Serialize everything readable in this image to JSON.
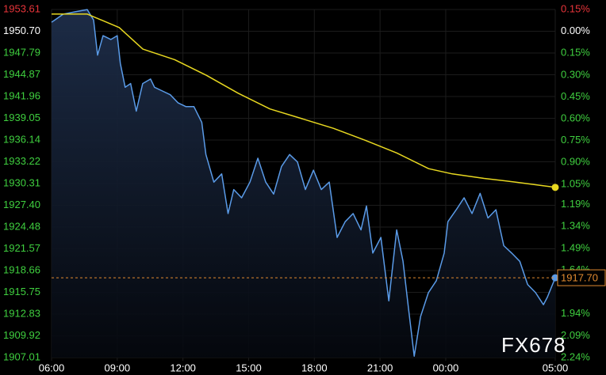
{
  "chart_data": {
    "type": "line",
    "watermark": "FX678",
    "xlim": [
      0,
      23
    ],
    "xticks": [
      {
        "value": 0,
        "label": "06:00"
      },
      {
        "value": 3,
        "label": "09:00"
      },
      {
        "value": 6,
        "label": "12:00"
      },
      {
        "value": 9,
        "label": "15:00"
      },
      {
        "value": 12,
        "label": "18:00"
      },
      {
        "value": 15,
        "label": "21:00"
      },
      {
        "value": 18,
        "label": "00:00"
      },
      {
        "value": 23,
        "label": "05:00"
      }
    ],
    "ylim": [
      1907.01,
      1953.61
    ],
    "yticks": [
      1953.61,
      {
        "value": 1950.7,
        "label": "1950.70"
      },
      1947.79,
      1944.87,
      1941.96,
      1939.05,
      1936.14,
      1933.22,
      1930.31,
      {
        "value": 1927.4,
        "label": "1927.40"
      },
      1924.48,
      1921.57,
      1918.66,
      1915.75,
      1912.83,
      1909.92,
      1907.01
    ],
    "ytick_colors": [
      "#e8343a",
      "#ffffff",
      "#3fcf3f",
      "#3fcf3f",
      "#3fcf3f",
      "#3fcf3f",
      "#3fcf3f",
      "#3fcf3f",
      "#3fcf3f",
      "#3fcf3f",
      "#3fcf3f",
      "#3fcf3f",
      "#3fcf3f",
      "#3fcf3f",
      "#3fcf3f",
      "#3fcf3f",
      "#3fcf3f"
    ],
    "y2lim": [
      -2.24,
      0.15
    ],
    "y2ticks": [
      {
        "value": 0.15,
        "label": "0.15%"
      },
      {
        "value": 0,
        "label": "0.00%"
      },
      {
        "value": -0.15,
        "label": "0.15%"
      },
      {
        "value": -0.3,
        "label": "0.30%"
      },
      {
        "value": -0.45,
        "label": "0.45%"
      },
      {
        "value": -0.6,
        "label": "0.60%"
      },
      {
        "value": -0.75,
        "label": "0.75%"
      },
      {
        "value": -0.9,
        "label": "0.90%"
      },
      {
        "value": -1.05,
        "label": "1.05%"
      },
      {
        "value": -1.19,
        "label": "1.19%"
      },
      {
        "value": -1.34,
        "label": "1.34%"
      },
      {
        "value": -1.49,
        "label": "1.49%"
      },
      {
        "value": -1.64,
        "label": "1.64%"
      },
      {
        "value": -1.94,
        "label": "1.94%"
      },
      {
        "value": -2.09,
        "label": "2.09%"
      },
      {
        "value": -2.24,
        "label": "2.24%"
      }
    ],
    "tick_colors": {
      "up": "#e8343a",
      "flat": "#ffffff",
      "down": "#3fcf3f"
    },
    "grid": true,
    "series": [
      {
        "color": "#5a9be8",
        "area": true,
        "x": [
          0,
          0.54,
          1.08,
          1.63,
          1.92,
          2.1,
          2.35,
          2.71,
          3.0,
          3.14,
          3.36,
          3.61,
          3.87,
          4.16,
          4.52,
          4.7,
          5.06,
          5.42,
          5.78,
          6.14,
          6.5,
          6.86,
          7.05,
          7.41,
          7.77,
          8.06,
          8.32,
          8.68,
          9.06,
          9.42,
          9.78,
          10.14,
          10.5,
          10.87,
          11.23,
          11.59,
          11.96,
          12.32,
          12.68,
          13.04,
          13.41,
          13.77,
          14.13,
          14.38,
          14.67,
          15.04,
          15.4,
          15.76,
          16.05,
          16.3,
          16.56,
          16.85,
          17.21,
          17.57,
          17.93,
          18.1,
          18.48,
          18.84,
          19.2,
          19.57,
          19.93,
          20.29,
          20.65,
          21.01,
          21.38,
          21.74,
          22.1,
          22.46,
          22.64,
          23.0
        ],
        "values": [
          1951.9,
          1953.0,
          1953.3,
          1953.6,
          1952.2,
          1947.5,
          1950.1,
          1949.6,
          1950.1,
          1946.4,
          1943.2,
          1943.7,
          1940.0,
          1943.7,
          1944.3,
          1943.2,
          1942.7,
          1942.2,
          1941.1,
          1940.6,
          1940.6,
          1938.5,
          1934.2,
          1930.5,
          1931.6,
          1926.3,
          1929.5,
          1928.4,
          1930.5,
          1933.7,
          1930.5,
          1928.9,
          1932.6,
          1934.2,
          1933.2,
          1929.5,
          1932.1,
          1929.5,
          1930.5,
          1923.1,
          1925.2,
          1926.3,
          1924.1,
          1927.3,
          1921.0,
          1923.1,
          1914.6,
          1924.1,
          1919.9,
          1913.6,
          1907.2,
          1912.5,
          1915.7,
          1917.3,
          1921.0,
          1925.2,
          1926.8,
          1928.4,
          1926.3,
          1929.0,
          1925.7,
          1926.8,
          1922.0,
          1921.0,
          1919.9,
          1916.8,
          1915.7,
          1914.1,
          1915.1,
          1917.7
        ]
      },
      {
        "color": "#e8d820",
        "area": false,
        "x": [
          0,
          1.63,
          3.09,
          4.17,
          5.62,
          7.07,
          8.52,
          9.97,
          11.42,
          12.87,
          14.32,
          15.77,
          17.22,
          18.3,
          19.75,
          21.2,
          23.0
        ],
        "values": [
          1953.0,
          1953.0,
          1951.2,
          1948.3,
          1946.9,
          1944.8,
          1942.4,
          1940.3,
          1939.0,
          1937.7,
          1936.1,
          1934.4,
          1932.3,
          1931.6,
          1931.0,
          1930.5,
          1929.8
        ]
      }
    ],
    "price_line": {
      "value": 1917.7,
      "label": "1917.70",
      "color": "#e08a30"
    }
  }
}
